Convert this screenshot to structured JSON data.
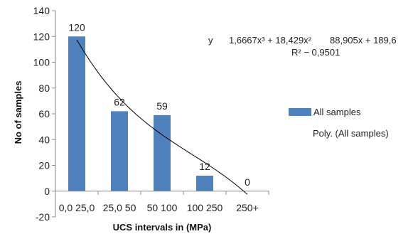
{
  "chart_data": {
    "type": "bar",
    "categories": [
      "0,0 25,0",
      "25,0 50",
      "50 100",
      "100 250",
      "250+"
    ],
    "series": [
      {
        "name": "All samples",
        "values": [
          120,
          62,
          59,
          12,
          0
        ],
        "color": "#4f81bd"
      }
    ],
    "data_labels": [
      "120",
      "62",
      "59",
      "12",
      "0"
    ],
    "xlabel": "UCS intervals in (MPa)",
    "ylabel": "No of samples",
    "ylim": [
      -20,
      140
    ],
    "yticks": [
      -20,
      0,
      20,
      40,
      60,
      80,
      100,
      120,
      140
    ],
    "ytick_labels": [
      "-20",
      "0",
      "20",
      "40",
      "60",
      "80",
      "100",
      "120",
      "140"
    ],
    "trendline": {
      "name": "Poly. (All samples)",
      "type": "polynomial",
      "order": 3,
      "color": "#000000",
      "x": [
        1,
        5
      ],
      "equation_parts": [
        "y",
        "1,6667x³ + 18,429x²",
        "88,905x + 189,6"
      ],
      "r2_text": "R² − 0,9501"
    },
    "legend": {
      "placement": "right"
    },
    "grid": false
  }
}
